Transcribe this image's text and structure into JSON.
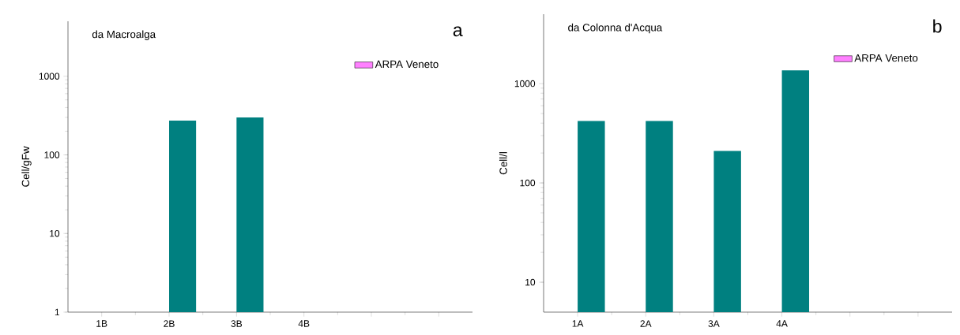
{
  "chart_data": [
    {
      "type": "bar",
      "title": "da Macroalga",
      "ylabel": "Cell/gFw",
      "annotations": [
        "a"
      ],
      "categories": [
        "1B",
        "2B",
        "3B",
        "4B",
        null,
        null
      ],
      "log": "y",
      "ylim": [
        1,
        5000
      ],
      "yticks": [
        1,
        10,
        100,
        1000
      ],
      "legend": "top right",
      "series": [
        {
          "name": "ARPA Veneto",
          "color": "#ff80ff",
          "values": [
            null,
            null,
            null,
            null,
            null,
            null
          ]
        },
        {
          "color": "#008080",
          "values": [
            null,
            272,
            299,
            null,
            null,
            null
          ]
        }
      ]
    },
    {
      "type": "bar",
      "title": "da Colonna d'Acqua",
      "ylabel": "Cell/l",
      "annotations": [
        "b"
      ],
      "categories": [
        "1A",
        "2A",
        "3A",
        "4A",
        null,
        null
      ],
      "log": "y",
      "ylim": [
        5,
        5000
      ],
      "yticks": [
        10,
        100,
        1000
      ],
      "legend": "top right",
      "series": [
        {
          "name": "ARPA Veneto",
          "color": "#ff80ff",
          "values": [
            null,
            null,
            null,
            null,
            null,
            null
          ]
        },
        {
          "color": "#008080",
          "values": [
            420,
            420,
            210,
            1360,
            null,
            null
          ]
        }
      ]
    }
  ]
}
